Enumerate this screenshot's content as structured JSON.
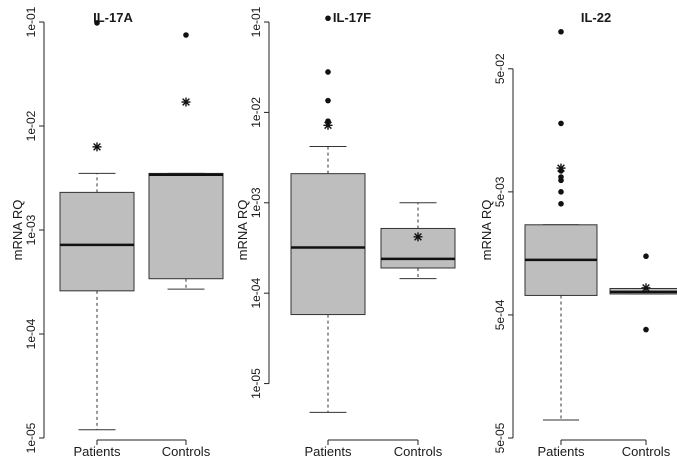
{
  "chart_data": [
    {
      "type": "box",
      "title": "IL-17A",
      "ylabel": "mRNA RQ",
      "yscale": "log",
      "ylim": [
        1e-05,
        0.1
      ],
      "yticks": [
        "1e-05",
        "1e-04",
        "1e-03",
        "1e-02",
        "1e-01"
      ],
      "ytick_values": [
        1e-05,
        0.0001,
        0.001,
        0.01,
        0.1
      ],
      "categories": [
        "Patients",
        "Controls"
      ],
      "boxes": [
        {
          "category": "Patients",
          "whisker_low": 1.2e-05,
          "q1": 0.00026,
          "median": 0.00072,
          "q3": 0.0023,
          "whisker_high": 0.0035,
          "outliers": [
            0.098
          ],
          "mean": 0.0063
        },
        {
          "category": "Controls",
          "whisker_low": 0.00027,
          "q1": 0.00034,
          "median": 0.0034,
          "q3": 0.0035,
          "whisker_high": 0.0035,
          "outliers": [
            0.075
          ],
          "mean": 0.017
        }
      ]
    },
    {
      "type": "box",
      "title": "IL-17F",
      "ylabel": "mRNA RQ",
      "yscale": "log",
      "ylim": [
        2.5e-06,
        0.1
      ],
      "yticks": [
        "1e-05",
        "1e-04",
        "1e-03",
        "1e-02",
        "1e-01"
      ],
      "ytick_values": [
        1e-05,
        0.0001,
        0.001,
        0.01,
        0.1
      ],
      "categories": [
        "Patients",
        "Controls"
      ],
      "boxes": [
        {
          "category": "Patients",
          "whisker_low": 4.8e-06,
          "q1": 5.8e-05,
          "median": 0.00032,
          "q3": 0.0021,
          "whisker_high": 0.0042,
          "outliers": [
            0.008,
            0.0135,
            0.028,
            0.11
          ],
          "mean": 0.0072
        },
        {
          "category": "Controls",
          "whisker_low": 0.000145,
          "q1": 0.00019,
          "median": 0.00024,
          "q3": 0.00052,
          "whisker_high": 0.001,
          "outliers": [],
          "mean": 0.00042
        }
      ]
    },
    {
      "type": "box",
      "title": "IL-22",
      "ylabel": "mRNA RQ",
      "yscale": "log",
      "ylim": [
        5e-05,
        0.12
      ],
      "yticks": [
        "5e-05",
        "5e-04",
        "5e-03",
        "5e-02"
      ],
      "ytick_values": [
        5e-05,
        0.0005,
        0.005,
        0.05
      ],
      "categories": [
        "Patients",
        "Controls"
      ],
      "boxes": [
        {
          "category": "Patients",
          "whisker_low": 7e-05,
          "q1": 0.00072,
          "median": 0.0014,
          "q3": 0.0027,
          "whisker_high": 0.0027,
          "outliers": [
            0.004,
            0.005,
            0.0062,
            0.0066,
            0.0074,
            0.018,
            0.1
          ],
          "mean": 0.0078
        },
        {
          "category": "Controls",
          "whisker_low": 0.00074,
          "q1": 0.00074,
          "median": 0.00077,
          "q3": 0.00082,
          "whisker_high": 0.00082,
          "outliers": [
            0.00038,
            0.0015
          ],
          "mean": 0.00083
        }
      ]
    }
  ]
}
